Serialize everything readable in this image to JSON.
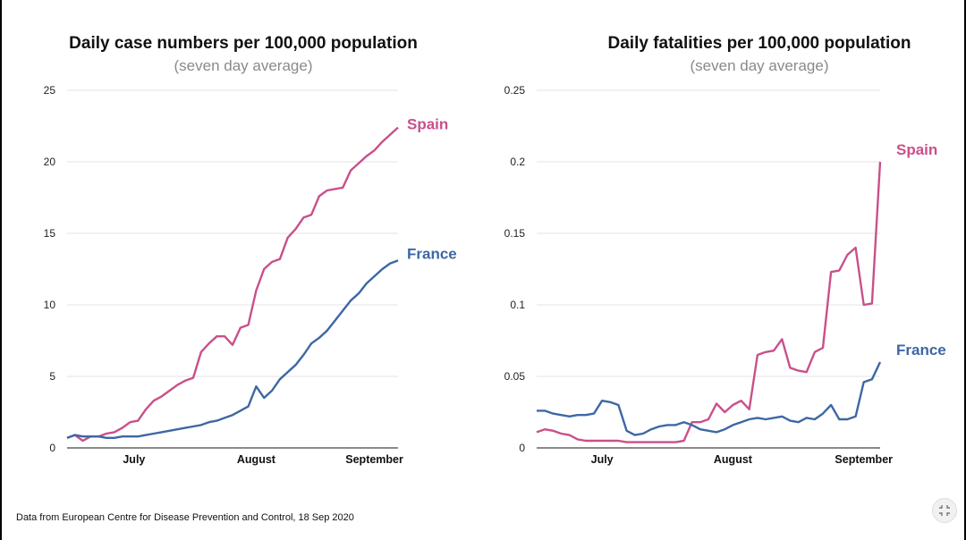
{
  "footnote": "Data from European Centre for Disease Prevention and Control, 18 Sep 2020",
  "colors": {
    "spain": "#c9508a",
    "france": "#3e67a4",
    "grid": "#e3e3e3",
    "axis": "#444444"
  },
  "chart_data": [
    {
      "type": "line",
      "title": "Daily case numbers per 100,000 population",
      "subtitle": "(seven day average)",
      "xlabel": "",
      "ylabel": "",
      "ylim": [
        0,
        25
      ],
      "yticks": [
        0,
        5,
        10,
        15,
        20,
        25
      ],
      "ytick_labels": [
        "0",
        "5",
        "10",
        "15",
        "20",
        "25"
      ],
      "xlim": [
        0,
        84
      ],
      "xticks": [
        {
          "pos": 17,
          "label": "July"
        },
        {
          "pos": 48,
          "label": "August"
        },
        {
          "pos": 78,
          "label": "September"
        }
      ],
      "grid": true,
      "series": [
        {
          "name": "Spain",
          "color_key": "spain",
          "x": [
            0,
            2,
            4,
            6,
            8,
            10,
            12,
            14,
            16,
            18,
            20,
            22,
            24,
            26,
            28,
            30,
            32,
            34,
            36,
            38,
            40,
            42,
            44,
            46,
            48,
            50,
            52,
            54,
            56,
            58,
            60,
            62,
            64,
            66,
            68,
            70,
            72,
            74,
            76,
            78,
            80,
            82,
            84
          ],
          "values": [
            0.7,
            0.9,
            0.5,
            0.8,
            0.8,
            1.0,
            1.1,
            1.4,
            1.8,
            1.9,
            2.7,
            3.3,
            3.6,
            4.0,
            4.4,
            4.7,
            4.9,
            6.7,
            7.3,
            7.8,
            7.8,
            7.2,
            8.4,
            8.6,
            11.0,
            12.5,
            13.0,
            13.2,
            14.7,
            15.3,
            16.1,
            16.3,
            17.6,
            18.0,
            18.1,
            18.2,
            19.4,
            19.9,
            20.4,
            20.8,
            21.4,
            21.9,
            22.4
          ]
        },
        {
          "name": "France",
          "color_key": "france",
          "x": [
            0,
            2,
            4,
            6,
            8,
            10,
            12,
            14,
            16,
            18,
            20,
            22,
            24,
            26,
            28,
            30,
            32,
            34,
            36,
            38,
            40,
            42,
            44,
            46,
            48,
            50,
            52,
            54,
            56,
            58,
            60,
            62,
            64,
            66,
            68,
            70,
            72,
            74,
            76,
            78,
            80,
            82,
            84
          ],
          "values": [
            0.7,
            0.9,
            0.8,
            0.8,
            0.8,
            0.7,
            0.7,
            0.8,
            0.8,
            0.8,
            0.9,
            1.0,
            1.1,
            1.2,
            1.3,
            1.4,
            1.5,
            1.6,
            1.8,
            1.9,
            2.1,
            2.3,
            2.6,
            2.9,
            4.3,
            3.5,
            4.0,
            4.8,
            5.3,
            5.8,
            6.5,
            7.3,
            7.7,
            8.2,
            8.9,
            9.6,
            10.3,
            10.8,
            11.5,
            12.0,
            12.5,
            12.9,
            13.1
          ]
        }
      ]
    },
    {
      "type": "line",
      "title": "Daily fatalities per 100,000 population",
      "subtitle": "(seven day average)",
      "xlabel": "",
      "ylabel": "",
      "ylim": [
        0,
        0.25
      ],
      "yticks": [
        0,
        0.05,
        0.1,
        0.15,
        0.2,
        0.25
      ],
      "ytick_labels": [
        "0",
        "0.05",
        "0.1",
        "0.15",
        "0.2",
        "0.25"
      ],
      "xlim": [
        0,
        84
      ],
      "xticks": [
        {
          "pos": 16,
          "label": "July"
        },
        {
          "pos": 48,
          "label": "August"
        },
        {
          "pos": 80,
          "label": "September"
        }
      ],
      "grid": true,
      "series": [
        {
          "name": "Spain",
          "color_key": "spain",
          "x": [
            0,
            2,
            4,
            6,
            8,
            10,
            12,
            14,
            16,
            18,
            20,
            22,
            24,
            26,
            28,
            30,
            32,
            34,
            36,
            38,
            40,
            42,
            44,
            46,
            48,
            50,
            52,
            54,
            56,
            58,
            60,
            62,
            64,
            66,
            68,
            70,
            72,
            74,
            76,
            78,
            80,
            82,
            84
          ],
          "values": [
            0.011,
            0.013,
            0.012,
            0.01,
            0.009,
            0.006,
            0.005,
            0.005,
            0.005,
            0.005,
            0.005,
            0.004,
            0.004,
            0.004,
            0.004,
            0.004,
            0.004,
            0.004,
            0.005,
            0.018,
            0.018,
            0.02,
            0.031,
            0.025,
            0.03,
            0.033,
            0.027,
            0.065,
            0.067,
            0.068,
            0.076,
            0.056,
            0.054,
            0.053,
            0.067,
            0.07,
            0.123,
            0.124,
            0.135,
            0.14,
            0.1,
            0.101,
            0.2
          ]
        },
        {
          "name": "France",
          "color_key": "france",
          "x": [
            0,
            2,
            4,
            6,
            8,
            10,
            12,
            14,
            16,
            18,
            20,
            22,
            24,
            26,
            28,
            30,
            32,
            34,
            36,
            38,
            40,
            42,
            44,
            46,
            48,
            50,
            52,
            54,
            56,
            58,
            60,
            62,
            64,
            66,
            68,
            70,
            72,
            74,
            76,
            78,
            80,
            82,
            84
          ],
          "values": [
            0.026,
            0.026,
            0.024,
            0.023,
            0.022,
            0.023,
            0.023,
            0.024,
            0.033,
            0.032,
            0.03,
            0.012,
            0.009,
            0.01,
            0.013,
            0.015,
            0.016,
            0.016,
            0.018,
            0.016,
            0.013,
            0.012,
            0.011,
            0.013,
            0.016,
            0.018,
            0.02,
            0.021,
            0.02,
            0.021,
            0.022,
            0.019,
            0.018,
            0.021,
            0.02,
            0.024,
            0.03,
            0.02,
            0.02,
            0.022,
            0.046,
            0.048,
            0.06
          ]
        }
      ]
    }
  ]
}
